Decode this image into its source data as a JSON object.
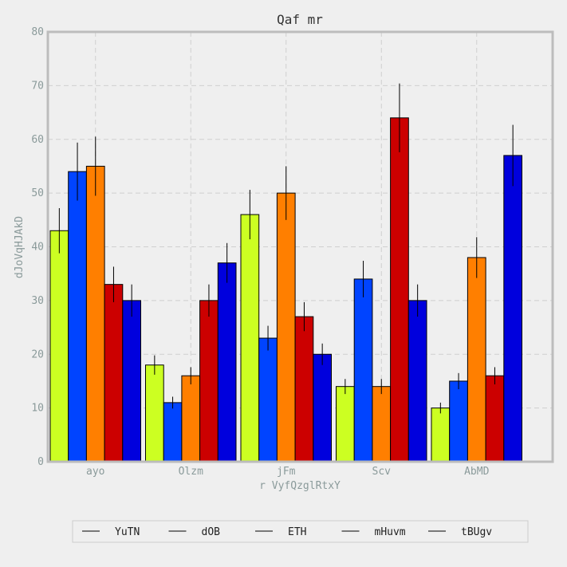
{
  "chart_data": {
    "type": "bar",
    "title": "Qaf mr",
    "xlabel": "r VyfQzglRtxY",
    "ylabel": "dJoVqHJAkD",
    "categories": [
      "ayo",
      "Olzm",
      "jFm",
      "Scv",
      "AbMD"
    ],
    "ylim": [
      0,
      80
    ],
    "yticks": [
      0,
      10,
      20,
      30,
      40,
      50,
      60,
      70,
      80
    ],
    "grid": true,
    "legend_position": "bottom",
    "series": [
      {
        "name": "YuTN",
        "color": "#ccff22",
        "values": [
          43,
          18,
          46,
          14,
          10
        ],
        "errors": [
          4.2,
          1.8,
          4.6,
          1.4,
          1.0
        ]
      },
      {
        "name": "dOB",
        "color": "#0044ff",
        "values": [
          54,
          11,
          23,
          34,
          15
        ],
        "errors": [
          5.4,
          1.1,
          2.3,
          3.4,
          1.5
        ]
      },
      {
        "name": "ETH",
        "color": "#ff7f00",
        "values": [
          55,
          16,
          50,
          14,
          38
        ],
        "errors": [
          5.5,
          1.6,
          5.0,
          1.4,
          3.8
        ]
      },
      {
        "name": "mHuvm",
        "color": "#cc0000",
        "values": [
          33,
          30,
          27,
          64,
          16
        ],
        "errors": [
          3.3,
          3.0,
          2.7,
          6.4,
          1.6
        ]
      },
      {
        "name": "tBUgv",
        "color": "#0000dd",
        "values": [
          30,
          37,
          20,
          30,
          57
        ],
        "errors": [
          3.0,
          3.7,
          2.0,
          3.0,
          5.7
        ]
      }
    ]
  }
}
